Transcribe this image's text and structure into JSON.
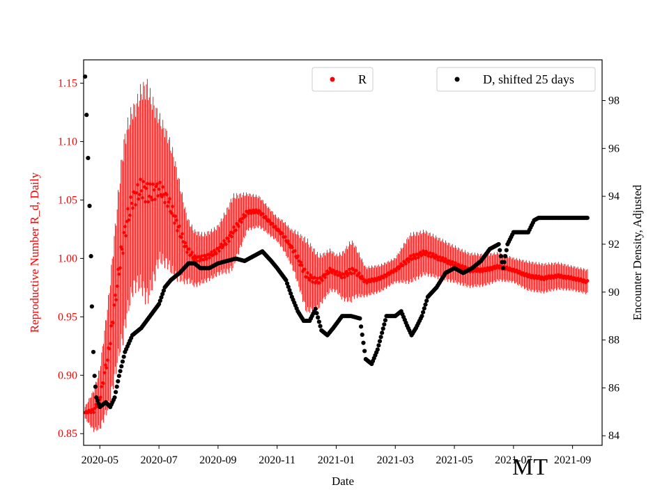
{
  "chart_data": {
    "type": "line",
    "state_label": "MT",
    "xlabel": "Date",
    "ylabel_left": "Reproductive Number R_d, Daily",
    "ylabel_right": "Encounter Density, Adjusted",
    "x_tick_labels": [
      "2020-05",
      "2020-07",
      "2020-09",
      "2020-11",
      "2021-01",
      "2021-03",
      "2021-05",
      "2021-07",
      "2021-09"
    ],
    "x_tick_months": [
      0,
      2,
      4,
      6,
      8,
      10,
      12,
      14,
      16
    ],
    "xlim_months": [
      -0.55,
      17.0
    ],
    "left_axis": {
      "ylim": [
        0.84,
        1.17
      ],
      "ticks": [
        0.85,
        0.9,
        0.95,
        1.0,
        1.05,
        1.1,
        1.15
      ],
      "tick_labels": [
        "0.85",
        "0.90",
        "0.95",
        "1.00",
        "1.05",
        "1.10",
        "1.15"
      ],
      "color": "#ff0000"
    },
    "right_axis": {
      "ylim": [
        83.6,
        99.7
      ],
      "ticks": [
        84,
        86,
        88,
        90,
        92,
        94,
        96,
        98
      ],
      "tick_labels": [
        "84",
        "86",
        "88",
        "90",
        "92",
        "94",
        "96",
        "98"
      ],
      "color": "#000000"
    },
    "series": [
      {
        "name": "R",
        "legend_label": "R",
        "axis": "left",
        "color": "#ff0000",
        "marker": "dot",
        "description_points_month_value": [
          [
            -0.5,
            0.868
          ],
          [
            -0.2,
            0.87
          ],
          [
            0.0,
            0.88
          ],
          [
            0.3,
            0.92
          ],
          [
            0.5,
            0.96
          ],
          [
            0.7,
            1.0
          ],
          [
            0.9,
            1.03
          ],
          [
            1.1,
            1.05
          ],
          [
            1.4,
            1.06
          ],
          [
            1.7,
            1.055
          ],
          [
            2.0,
            1.06
          ],
          [
            2.3,
            1.05
          ],
          [
            2.6,
            1.03
          ],
          [
            2.9,
            1.01
          ],
          [
            3.2,
            1.0
          ],
          [
            3.5,
            1.0
          ],
          [
            3.9,
            1.005
          ],
          [
            4.3,
            1.015
          ],
          [
            4.7,
            1.03
          ],
          [
            5.0,
            1.04
          ],
          [
            5.4,
            1.04
          ],
          [
            5.8,
            1.03
          ],
          [
            6.2,
            1.02
          ],
          [
            6.6,
            1.005
          ],
          [
            7.0,
            0.985
          ],
          [
            7.4,
            0.98
          ],
          [
            7.8,
            0.99
          ],
          [
            8.2,
            0.985
          ],
          [
            8.6,
            0.99
          ],
          [
            9.0,
            0.98
          ],
          [
            9.5,
            0.983
          ],
          [
            10.0,
            0.99
          ],
          [
            10.5,
            1.0
          ],
          [
            11.0,
            1.005
          ],
          [
            11.5,
            1.0
          ],
          [
            12.0,
            0.995
          ],
          [
            12.5,
            0.99
          ],
          [
            13.0,
            0.99
          ],
          [
            13.5,
            0.993
          ],
          [
            14.0,
            0.99
          ],
          [
            14.5,
            0.985
          ],
          [
            15.0,
            0.983
          ],
          [
            15.5,
            0.985
          ],
          [
            16.0,
            0.983
          ],
          [
            16.5,
            0.98
          ]
        ],
        "error_halfwidth_points_month_value": [
          [
            -0.5,
            0.005
          ],
          [
            0.0,
            0.025
          ],
          [
            0.5,
            0.06
          ],
          [
            0.8,
            0.08
          ],
          [
            1.2,
            0.075
          ],
          [
            1.6,
            0.09
          ],
          [
            2.0,
            0.06
          ],
          [
            2.5,
            0.05
          ],
          [
            3.0,
            0.025
          ],
          [
            3.5,
            0.02
          ],
          [
            4.0,
            0.02
          ],
          [
            4.5,
            0.03
          ],
          [
            5.0,
            0.015
          ],
          [
            5.5,
            0.012
          ],
          [
            6.0,
            0.01
          ],
          [
            6.5,
            0.015
          ],
          [
            7.0,
            0.03
          ],
          [
            7.5,
            0.02
          ],
          [
            8.0,
            0.015
          ],
          [
            8.5,
            0.025
          ],
          [
            9.0,
            0.012
          ],
          [
            10.0,
            0.01
          ],
          [
            10.5,
            0.02
          ],
          [
            11.0,
            0.018
          ],
          [
            12.0,
            0.015
          ],
          [
            13.0,
            0.013
          ],
          [
            14.0,
            0.01
          ],
          [
            14.5,
            0.012
          ],
          [
            15.0,
            0.012
          ],
          [
            16.0,
            0.01
          ],
          [
            16.5,
            0.01
          ]
        ]
      },
      {
        "name": "D, shifted 25 days",
        "legend_label": "D, shifted 25 days",
        "axis": "right",
        "color": "#000000",
        "marker": "dot",
        "points_month_value": [
          [
            -0.5,
            99.0
          ],
          [
            -0.45,
            97.4
          ],
          [
            -0.4,
            95.6
          ],
          [
            -0.35,
            93.6
          ],
          [
            -0.3,
            91.5
          ],
          [
            -0.27,
            89.4
          ],
          [
            -0.22,
            87.5
          ],
          [
            -0.18,
            86.5
          ],
          [
            -0.12,
            85.6
          ],
          [
            0.0,
            85.2
          ],
          [
            0.2,
            85.4
          ],
          [
            0.35,
            85.2
          ],
          [
            0.5,
            85.6
          ],
          [
            0.65,
            86.5
          ],
          [
            0.85,
            87.5
          ],
          [
            1.1,
            88.2
          ],
          [
            1.4,
            88.5
          ],
          [
            1.7,
            89.0
          ],
          [
            2.0,
            89.5
          ],
          [
            2.2,
            90.2
          ],
          [
            2.4,
            90.5
          ],
          [
            2.7,
            90.8
          ],
          [
            3.0,
            91.2
          ],
          [
            3.2,
            91.2
          ],
          [
            3.4,
            91.0
          ],
          [
            3.7,
            91.0
          ],
          [
            4.0,
            91.2
          ],
          [
            4.3,
            91.3
          ],
          [
            4.6,
            91.4
          ],
          [
            4.9,
            91.3
          ],
          [
            5.2,
            91.5
          ],
          [
            5.5,
            91.7
          ],
          [
            5.8,
            91.3
          ],
          [
            6.0,
            91.0
          ],
          [
            6.3,
            90.5
          ],
          [
            6.5,
            89.8
          ],
          [
            6.7,
            89.2
          ],
          [
            6.9,
            88.8
          ],
          [
            7.1,
            88.8
          ],
          [
            7.3,
            89.3
          ],
          [
            7.5,
            88.4
          ],
          [
            7.7,
            88.2
          ],
          [
            7.9,
            88.5
          ],
          [
            8.2,
            89.0
          ],
          [
            8.5,
            89.0
          ],
          [
            8.8,
            88.9
          ],
          [
            9.0,
            87.2
          ],
          [
            9.2,
            87.0
          ],
          [
            9.4,
            87.6
          ],
          [
            9.7,
            89.0
          ],
          [
            10.0,
            89.0
          ],
          [
            10.2,
            89.2
          ],
          [
            10.4,
            88.6
          ],
          [
            10.55,
            88.2
          ],
          [
            10.7,
            88.5
          ],
          [
            10.9,
            89.0
          ],
          [
            11.1,
            89.8
          ],
          [
            11.4,
            90.2
          ],
          [
            11.7,
            90.8
          ],
          [
            12.0,
            91.0
          ],
          [
            12.3,
            90.8
          ],
          [
            12.6,
            91.0
          ],
          [
            12.9,
            91.3
          ],
          [
            13.2,
            91.8
          ],
          [
            13.5,
            92.0
          ],
          [
            13.65,
            91.0
          ],
          [
            13.8,
            92.0
          ],
          [
            14.0,
            92.5
          ],
          [
            14.3,
            92.5
          ],
          [
            14.5,
            92.5
          ],
          [
            14.7,
            93.0
          ],
          [
            14.85,
            93.1
          ],
          [
            15.0,
            93.1
          ],
          [
            15.5,
            93.1
          ],
          [
            16.0,
            93.1
          ],
          [
            16.5,
            93.1
          ]
        ]
      }
    ],
    "legend_entries": [
      {
        "label": "R",
        "placement": "top-center"
      },
      {
        "label": "D, shifted 25 days",
        "placement": "top-right"
      }
    ]
  }
}
